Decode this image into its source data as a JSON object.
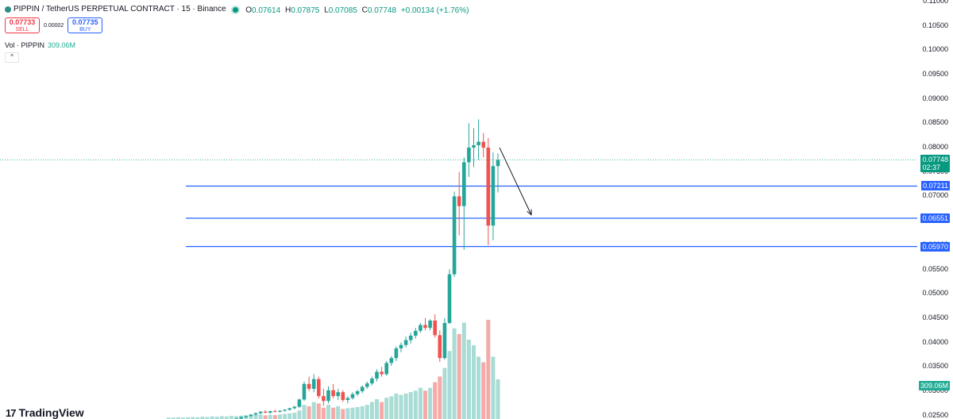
{
  "header": {
    "symbol": "PIPPIN / TetherUS PERPETUAL CONTRACT · 15 · Binance",
    "ohlc": [
      {
        "key": "O",
        "value": "0.07614"
      },
      {
        "key": "H",
        "value": "0.07875"
      },
      {
        "key": "L",
        "value": "0.07085"
      },
      {
        "key": "C",
        "value": "0.07748"
      }
    ],
    "change": "+0.00134 (+1.76%)",
    "symbol_icon": "coin-icon",
    "status_icon": "market-open-dot"
  },
  "trade": {
    "sell_price": "0.07733",
    "sell_label": "SELL",
    "spread": "0.00002",
    "buy_price": "0.07735",
    "buy_label": "BUY"
  },
  "volume_legend": {
    "label": "Vol · PIPPIN",
    "value": "309.06M"
  },
  "collapse_icon": "chevron-up-icon",
  "logo": {
    "mark": "17",
    "text": "TradingView"
  },
  "colors": {
    "up": "#26a69a",
    "down": "#ef5350",
    "level": "#2962ff",
    "vol_up": "#a8dcd5",
    "vol_down": "#f4aaa8"
  },
  "chart_data": {
    "type": "candlestick",
    "interval": "15",
    "y_axis": {
      "ticks": [
        "0.11000",
        "0.10500",
        "0.10000",
        "0.09500",
        "0.09000",
        "0.08500",
        "0.08000",
        "0.07500",
        "0.07000",
        "0.06500",
        "0.06000",
        "0.05500",
        "0.05000",
        "0.04500",
        "0.04000",
        "0.03500",
        "0.03000",
        "0.02500"
      ],
      "range": [
        0.0243,
        0.1103
      ]
    },
    "last_price": {
      "value": "0.07748",
      "countdown": "02:37"
    },
    "volume_last": "309.06M",
    "horizontal_levels": [
      {
        "price": 0.07211,
        "label": "0.07211"
      },
      {
        "price": 0.06551,
        "label": "0.06551"
      },
      {
        "price": 0.0597,
        "label": "0.05970"
      }
    ],
    "arrow": {
      "from_price": 0.08,
      "to_price": 0.0662,
      "direction": "down"
    },
    "candles": [
      [
        0.0222,
        0.0224,
        0.0221,
        0.0223
      ],
      [
        0.0223,
        0.0225,
        0.0222,
        0.0224
      ],
      [
        0.0224,
        0.0225,
        0.0223,
        0.0224
      ],
      [
        0.0224,
        0.0226,
        0.0223,
        0.0225
      ],
      [
        0.0225,
        0.0227,
        0.0224,
        0.0226
      ],
      [
        0.0226,
        0.0228,
        0.0225,
        0.0227
      ],
      [
        0.0227,
        0.0229,
        0.0226,
        0.0228
      ],
      [
        0.0228,
        0.0231,
        0.0227,
        0.023
      ],
      [
        0.023,
        0.0232,
        0.0229,
        0.0231
      ],
      [
        0.0231,
        0.0234,
        0.023,
        0.0233
      ],
      [
        0.0233,
        0.0236,
        0.0232,
        0.0235
      ],
      [
        0.0235,
        0.0238,
        0.0234,
        0.0237
      ],
      [
        0.0237,
        0.024,
        0.0236,
        0.0239
      ],
      [
        0.0239,
        0.0242,
        0.0238,
        0.0241
      ],
      [
        0.0241,
        0.0245,
        0.024,
        0.0244
      ],
      [
        0.0244,
        0.0248,
        0.0243,
        0.0247
      ],
      [
        0.0247,
        0.025,
        0.0245,
        0.0249
      ],
      [
        0.0249,
        0.0253,
        0.0248,
        0.0252
      ],
      [
        0.0252,
        0.0256,
        0.025,
        0.0255
      ],
      [
        0.0255,
        0.0259,
        0.0253,
        0.0258
      ],
      [
        0.0258,
        0.0261,
        0.0255,
        0.0256
      ],
      [
        0.0256,
        0.026,
        0.0254,
        0.0259
      ],
      [
        0.0259,
        0.0262,
        0.0257,
        0.0258
      ],
      [
        0.0258,
        0.0261,
        0.0256,
        0.026
      ],
      [
        0.026,
        0.0263,
        0.0258,
        0.0262
      ],
      [
        0.0262,
        0.0266,
        0.026,
        0.0265
      ],
      [
        0.0265,
        0.027,
        0.0263,
        0.0268
      ],
      [
        0.0268,
        0.0285,
        0.0266,
        0.0283
      ],
      [
        0.0283,
        0.032,
        0.028,
        0.0315
      ],
      [
        0.0315,
        0.033,
        0.03,
        0.0305
      ],
      [
        0.0305,
        0.0335,
        0.0298,
        0.0325
      ],
      [
        0.0325,
        0.033,
        0.0285,
        0.029
      ],
      [
        0.029,
        0.0305,
        0.027,
        0.028
      ],
      [
        0.028,
        0.031,
        0.0275,
        0.0302
      ],
      [
        0.0302,
        0.0315,
        0.0285,
        0.029
      ],
      [
        0.029,
        0.0305,
        0.0282,
        0.0298
      ],
      [
        0.0298,
        0.0302,
        0.0278,
        0.0282
      ],
      [
        0.0282,
        0.029,
        0.0275,
        0.0286
      ],
      [
        0.0286,
        0.0298,
        0.0283,
        0.0294
      ],
      [
        0.0294,
        0.0303,
        0.029,
        0.03
      ],
      [
        0.03,
        0.0312,
        0.0296,
        0.0309
      ],
      [
        0.0309,
        0.032,
        0.0305,
        0.0316
      ],
      [
        0.0316,
        0.033,
        0.0312,
        0.0326
      ],
      [
        0.0326,
        0.0345,
        0.032,
        0.034
      ],
      [
        0.034,
        0.035,
        0.033,
        0.0335
      ],
      [
        0.0335,
        0.0362,
        0.0332,
        0.0358
      ],
      [
        0.0358,
        0.0372,
        0.0352,
        0.0368
      ],
      [
        0.0368,
        0.0392,
        0.0362,
        0.0388
      ],
      [
        0.0388,
        0.04,
        0.038,
        0.0395
      ],
      [
        0.0395,
        0.0412,
        0.039,
        0.0405
      ],
      [
        0.0405,
        0.042,
        0.0398,
        0.0414
      ],
      [
        0.0414,
        0.043,
        0.0408,
        0.0424
      ],
      [
        0.0424,
        0.044,
        0.042,
        0.0436
      ],
      [
        0.0436,
        0.045,
        0.0425,
        0.043
      ],
      [
        0.043,
        0.0448,
        0.0425,
        0.0445
      ],
      [
        0.0445,
        0.0458,
        0.041,
        0.0415
      ],
      [
        0.0415,
        0.0425,
        0.036,
        0.0368
      ],
      [
        0.0368,
        0.045,
        0.0365,
        0.044
      ],
      [
        0.044,
        0.055,
        0.0438,
        0.054
      ],
      [
        0.054,
        0.071,
        0.0535,
        0.07
      ],
      [
        0.07,
        0.075,
        0.062,
        0.068
      ],
      [
        0.068,
        0.078,
        0.059,
        0.077
      ],
      [
        0.077,
        0.085,
        0.074,
        0.08
      ],
      [
        0.08,
        0.084,
        0.076,
        0.0805
      ],
      [
        0.0805,
        0.0858,
        0.0775,
        0.0812
      ],
      [
        0.0812,
        0.083,
        0.078,
        0.08
      ],
      [
        0.08,
        0.082,
        0.06,
        0.064
      ],
      [
        0.064,
        0.079,
        0.061,
        0.0762
      ],
      [
        0.0762,
        0.0788,
        0.0708,
        0.0775
      ]
    ],
    "volumes": [
      0.5,
      0.5,
      0.6,
      0.5,
      0.6,
      0.7,
      0.6,
      0.8,
      0.7,
      0.9,
      0.8,
      1,
      0.9,
      1.1,
      1,
      1.2,
      1.3,
      1.5,
      1.4,
      1.6,
      1.3,
      1.5,
      1.4,
      1.6,
      1.8,
      2,
      2.2,
      3,
      5,
      4.5,
      6,
      5.5,
      4,
      5,
      4,
      4.5,
      3.5,
      3.8,
      4,
      4.2,
      4.5,
      5,
      6,
      7,
      6,
      7.5,
      8,
      9,
      8.5,
      9,
      9.5,
      10,
      11,
      10,
      11,
      13,
      15,
      18,
      24,
      32,
      30,
      34,
      28,
      26,
      22,
      20,
      35,
      22,
      14
    ]
  }
}
